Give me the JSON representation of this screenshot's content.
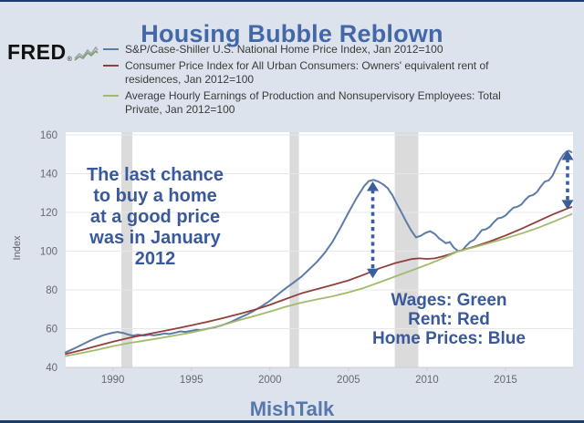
{
  "page": {
    "title": "Housing Bubble Reblown",
    "watermark": "MishTalk",
    "background": "#dce3ed",
    "border_color": "#1d3c6e",
    "accent_blue": "#39599a"
  },
  "logo": {
    "text": "FRED",
    "reg": "®",
    "sparkline_icon": "fred-sparkline-icon"
  },
  "legend": {
    "items": [
      {
        "label": "S&P/Case-Shiller U.S. National Home Price Index, Jan 2012=100",
        "color": "#5d7ba8"
      },
      {
        "label": "Consumer Price Index for All Urban Consumers: Owners' equivalent rent of residences, Jan 2012=100",
        "color": "#913f3c"
      },
      {
        "label": "Average Hourly Earnings of Production and Nonsupervisory Employees: Total Private, Jan 2012=100",
        "color": "#a1ba6d"
      }
    ]
  },
  "annotations": {
    "note_lines": [
      "The last chance",
      "to buy a home",
      "at a good price",
      "was in January",
      "2012"
    ],
    "key_lines": [
      "Wages: Green",
      "Rent: Red",
      "Home Prices: Blue"
    ]
  },
  "axis": {
    "y_label": "Index",
    "y_ticks": [
      40,
      60,
      80,
      100,
      120,
      140,
      160
    ],
    "x_ticks": [
      1990,
      1995,
      2000,
      2005,
      2010,
      2015
    ]
  },
  "chart_data": {
    "type": "line",
    "title": "Housing Bubble Reblown",
    "xlabel": "",
    "ylabel": "Index",
    "xlim": [
      1987,
      2019.3
    ],
    "ylim": [
      40,
      160
    ],
    "grid": true,
    "gridlines": [
      60,
      80,
      100,
      120,
      140,
      160
    ],
    "legend_position": "top-left",
    "band_color": "#dbdbdb",
    "arrow_color": "#3a5d9e",
    "recession_bands": [
      [
        1990.55,
        1991.25
      ],
      [
        2001.25,
        2001.85
      ],
      [
        2007.95,
        2009.45
      ]
    ],
    "arrows": [
      {
        "x": 2006.55,
        "from": 86,
        "to": 136
      },
      {
        "x": 2018.95,
        "from": 121.5,
        "to": 152
      }
    ],
    "series": [
      {
        "name": "S&P/Case-Shiller U.S. National Home Price Index, Jan 2012=100",
        "short_name": "Home Prices",
        "color": "#5d7ba8",
        "width": 2,
        "points": [
          [
            1987.0,
            47.8
          ],
          [
            1987.5,
            49.6
          ],
          [
            1988.0,
            51.6
          ],
          [
            1988.5,
            53.6
          ],
          [
            1989.0,
            55.4
          ],
          [
            1989.5,
            56.9
          ],
          [
            1990.0,
            57.9
          ],
          [
            1990.3,
            58.3
          ],
          [
            1990.7,
            57.7
          ],
          [
            1991.0,
            56.9
          ],
          [
            1991.3,
            56.4
          ],
          [
            1991.6,
            56.9
          ],
          [
            1992.0,
            56.4
          ],
          [
            1992.3,
            56.9
          ],
          [
            1992.6,
            56.5
          ],
          [
            1993.0,
            57.0
          ],
          [
            1993.3,
            57.5
          ],
          [
            1993.6,
            57.2
          ],
          [
            1994.0,
            58.0
          ],
          [
            1994.3,
            58.6
          ],
          [
            1994.6,
            58.3
          ],
          [
            1995.0,
            58.9
          ],
          [
            1995.3,
            59.4
          ],
          [
            1995.6,
            59.2
          ],
          [
            1996.0,
            59.9
          ],
          [
            1996.5,
            60.7
          ],
          [
            1997.0,
            61.9
          ],
          [
            1997.5,
            63.4
          ],
          [
            1998.0,
            65.3
          ],
          [
            1998.5,
            67.2
          ],
          [
            1999.0,
            69.3
          ],
          [
            1999.5,
            71.7
          ],
          [
            2000.0,
            74.4
          ],
          [
            2000.5,
            77.6
          ],
          [
            2001.0,
            80.8
          ],
          [
            2001.5,
            83.7
          ],
          [
            2002.0,
            86.8
          ],
          [
            2002.5,
            90.6
          ],
          [
            2003.0,
            94.5
          ],
          [
            2003.5,
            99.2
          ],
          [
            2004.0,
            105.0
          ],
          [
            2004.5,
            112.2
          ],
          [
            2005.0,
            119.8
          ],
          [
            2005.5,
            127.2
          ],
          [
            2006.0,
            133.6
          ],
          [
            2006.3,
            136.2
          ],
          [
            2006.6,
            136.8
          ],
          [
            2006.9,
            135.9
          ],
          [
            2007.2,
            134.5
          ],
          [
            2007.5,
            132.5
          ],
          [
            2007.8,
            128.9
          ],
          [
            2008.1,
            124.1
          ],
          [
            2008.4,
            119.6
          ],
          [
            2008.7,
            114.9
          ],
          [
            2009.0,
            110.6
          ],
          [
            2009.3,
            107.1
          ],
          [
            2009.6,
            107.9
          ],
          [
            2009.9,
            109.4
          ],
          [
            2010.2,
            110.3
          ],
          [
            2010.5,
            108.9
          ],
          [
            2010.8,
            106.4
          ],
          [
            2011.0,
            105.3
          ],
          [
            2011.2,
            104.1
          ],
          [
            2011.45,
            104.7
          ],
          [
            2011.7,
            101.9
          ],
          [
            2012.0,
            100.0
          ],
          [
            2012.25,
            100.4
          ],
          [
            2012.5,
            102.8
          ],
          [
            2012.75,
            104.8
          ],
          [
            2013.0,
            105.9
          ],
          [
            2013.25,
            108.4
          ],
          [
            2013.5,
            110.9
          ],
          [
            2013.75,
            111.3
          ],
          [
            2014.0,
            112.5
          ],
          [
            2014.25,
            114.9
          ],
          [
            2014.5,
            116.9
          ],
          [
            2014.75,
            117.3
          ],
          [
            2015.0,
            118.4
          ],
          [
            2015.25,
            120.5
          ],
          [
            2015.5,
            122.4
          ],
          [
            2015.75,
            122.9
          ],
          [
            2016.0,
            124.0
          ],
          [
            2016.25,
            126.4
          ],
          [
            2016.5,
            128.4
          ],
          [
            2016.75,
            129.0
          ],
          [
            2017.0,
            130.5
          ],
          [
            2017.25,
            133.4
          ],
          [
            2017.5,
            135.9
          ],
          [
            2017.75,
            136.5
          ],
          [
            2018.0,
            139.0
          ],
          [
            2018.25,
            143.4
          ],
          [
            2018.5,
            147.5
          ],
          [
            2018.7,
            150.0
          ],
          [
            2018.9,
            151.5
          ],
          [
            2019.05,
            151.8
          ],
          [
            2019.2,
            151.0
          ]
        ]
      },
      {
        "name": "Consumer Price Index for All Urban Consumers: Owners' equivalent rent of residences, Jan 2012=100",
        "short_name": "Rent",
        "color": "#913f3c",
        "width": 1.8,
        "points": [
          [
            1987,
            46.9
          ],
          [
            1988,
            48.9
          ],
          [
            1989,
            51.1
          ],
          [
            1990,
            53.2
          ],
          [
            1991,
            55.2
          ],
          [
            1992,
            56.8
          ],
          [
            1993,
            58.4
          ],
          [
            1994,
            60.0
          ],
          [
            1995,
            61.7
          ],
          [
            1996,
            63.5
          ],
          [
            1997,
            65.4
          ],
          [
            1998,
            67.5
          ],
          [
            1999,
            69.7
          ],
          [
            2000,
            72.3
          ],
          [
            2001,
            75.3
          ],
          [
            2002,
            78.2
          ],
          [
            2003,
            80.4
          ],
          [
            2004,
            82.6
          ],
          [
            2005,
            84.9
          ],
          [
            2006,
            87.9
          ],
          [
            2007,
            91.2
          ],
          [
            2008,
            93.9
          ],
          [
            2009,
            95.9
          ],
          [
            2009.5,
            96.3
          ],
          [
            2010,
            96.0
          ],
          [
            2010.5,
            96.3
          ],
          [
            2011,
            97.3
          ],
          [
            2011.5,
            98.5
          ],
          [
            2012,
            100.0
          ],
          [
            2013,
            102.3
          ],
          [
            2014,
            105.0
          ],
          [
            2015,
            108.1
          ],
          [
            2016,
            111.5
          ],
          [
            2017,
            115.2
          ],
          [
            2018,
            118.9
          ],
          [
            2019,
            122.2
          ],
          [
            2019.2,
            122.8
          ]
        ]
      },
      {
        "name": "Average Hourly Earnings of Production and Nonsupervisory Employees: Total Private, Jan 2012=100",
        "short_name": "Wages",
        "color": "#a1ba6d",
        "width": 1.8,
        "points": [
          [
            1987,
            45.9
          ],
          [
            1988,
            47.4
          ],
          [
            1989,
            49.1
          ],
          [
            1990,
            50.9
          ],
          [
            1991,
            52.5
          ],
          [
            1992,
            53.8
          ],
          [
            1993,
            55.1
          ],
          [
            1994,
            56.5
          ],
          [
            1995,
            58.0
          ],
          [
            1996,
            59.8
          ],
          [
            1997,
            61.9
          ],
          [
            1998,
            64.3
          ],
          [
            1999,
            66.5
          ],
          [
            2000,
            68.8
          ],
          [
            2001,
            71.3
          ],
          [
            2002,
            73.4
          ],
          [
            2003,
            75.1
          ],
          [
            2004,
            76.7
          ],
          [
            2005,
            78.7
          ],
          [
            2006,
            81.1
          ],
          [
            2007,
            84.0
          ],
          [
            2008,
            87.0
          ],
          [
            2009,
            90.0
          ],
          [
            2010,
            93.0
          ],
          [
            2011,
            96.3
          ],
          [
            2012,
            100.0
          ],
          [
            2013,
            102.0
          ],
          [
            2014,
            104.3
          ],
          [
            2015,
            106.6
          ],
          [
            2016,
            109.1
          ],
          [
            2017,
            111.8
          ],
          [
            2018,
            115.0
          ],
          [
            2019,
            118.4
          ],
          [
            2019.2,
            119.1
          ]
        ]
      }
    ]
  }
}
